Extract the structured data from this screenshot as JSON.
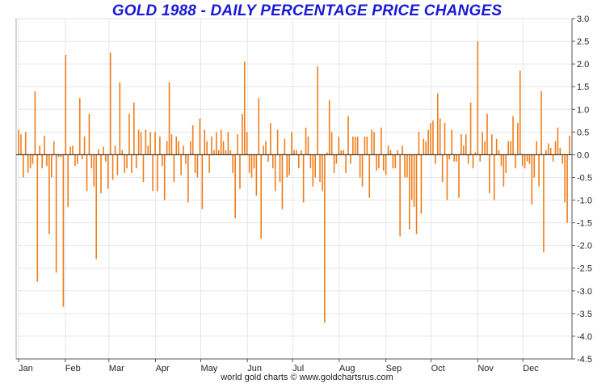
{
  "chart_data": {
    "type": "bar",
    "title": "GOLD 1988 - DAILY PERCENTAGE PRICE CHANGES",
    "xlabel": "",
    "ylabel": "",
    "ylim": [
      -4.5,
      3.0
    ],
    "yticks": [
      3.0,
      2.5,
      2.0,
      1.5,
      1.0,
      0.5,
      0.0,
      -0.5,
      -1.0,
      -1.5,
      -2.0,
      -2.5,
      -3.0,
      -3.5,
      -4.0,
      -4.5
    ],
    "ytick_labels": [
      "3.0",
      "2.5",
      "2.0",
      "1.5",
      "1.0",
      "0.5",
      "0.0",
      "-0.5",
      "-1.0",
      "-1.5",
      "-2.0",
      "-2.5",
      "-3.0",
      "-3.5",
      "-4.0",
      "-4.5"
    ],
    "y_axis_side": "right",
    "grid": true,
    "bar_color": "#f07d1a",
    "months": [
      "Jan",
      "Feb",
      "Mar",
      "Apr",
      "May",
      "Jun",
      "Jul",
      "Aug",
      "Sep",
      "Oct",
      "Nov",
      "Dec"
    ],
    "values": [
      0.55,
      0.45,
      -0.5,
      0.5,
      -0.4,
      -0.3,
      -0.2,
      1.4,
      -2.8,
      0.2,
      -0.3,
      0.42,
      -0.25,
      -1.75,
      -0.5,
      0.3,
      -2.6,
      -0.05,
      -0.05,
      -3.35,
      2.2,
      -1.15,
      0.18,
      0.2,
      -0.25,
      -0.2,
      1.25,
      -0.1,
      0.4,
      -0.8,
      0.9,
      -0.3,
      -0.7,
      -2.3,
      0.12,
      -0.85,
      0.18,
      -0.15,
      -0.75,
      2.25,
      -0.55,
      0.2,
      -0.45,
      1.6,
      0.1,
      -0.4,
      -0.3,
      0.9,
      -0.4,
      1.15,
      -0.3,
      0.55,
      0.5,
      -0.6,
      0.55,
      0.2,
      0.5,
      -0.8,
      0.5,
      -0.8,
      0.4,
      -0.25,
      -1.0,
      0.3,
      1.6,
      0.45,
      -0.6,
      0.4,
      0.3,
      -0.45,
      0.2,
      -0.2,
      -1.05,
      0.3,
      0.65,
      -0.4,
      -0.5,
      0.8,
      -1.2,
      0.55,
      0.3,
      -0.4,
      0.4,
      0.1,
      0.5,
      0.1,
      0.55,
      0.3,
      0.1,
      0.5,
      0.1,
      -0.4,
      -1.4,
      0.45,
      -0.75,
      0.9,
      2.05,
      0.5,
      -0.4,
      -0.5,
      -0.3,
      -0.9,
      1.25,
      -1.85,
      0.2,
      0.3,
      -0.15,
      0.7,
      -0.3,
      -0.8,
      0.55,
      -0.6,
      -1.2,
      0.35,
      -0.5,
      -0.45,
      0.5,
      0.1,
      0.1,
      -0.3,
      0.1,
      -1.05,
      0.6,
      0.4,
      -0.3,
      -0.7,
      -0.5,
      1.95,
      -0.6,
      -0.8,
      -3.7,
      0.05,
      1.2,
      0.5,
      -0.4,
      -0.2,
      0.4,
      0.1,
      0.1,
      -0.4,
      0.85,
      -0.2,
      0.4,
      0.4,
      0.4,
      -0.5,
      -0.7,
      0.4,
      0.4,
      -0.95,
      0.55,
      0.5,
      -0.35,
      -0.3,
      0.6,
      -0.35,
      -0.45,
      0.2,
      0.1,
      -0.3,
      -0.3,
      0.1,
      -1.8,
      0.2,
      -0.5,
      -0.5,
      -1.65,
      -1.0,
      -1.15,
      -1.75,
      0.5,
      -1.3,
      0.35,
      0.3,
      0.55,
      0.7,
      0.75,
      -0.2,
      1.35,
      0.8,
      -0.6,
      0.7,
      -1.0,
      -0.1,
      0.55,
      -0.15,
      -0.15,
      -0.95,
      0.45,
      0.2,
      0.45,
      -0.2,
      1.15,
      -0.3,
      0.05,
      2.5,
      -0.15,
      0.5,
      0.3,
      0.9,
      -0.85,
      0.45,
      -1.0,
      0.35,
      0.1,
      -0.25,
      -0.7,
      -0.4,
      0.3,
      0.3,
      0.85,
      -0.3,
      0.7,
      1.85,
      -0.25,
      -0.3,
      -0.15,
      -0.2,
      -1.1,
      -0.5,
      0.3,
      -0.7,
      1.4,
      -2.15,
      0.1,
      0.25,
      0.15,
      -0.15,
      0.3,
      0.6,
      0.15,
      -0.2,
      -1.05,
      -1.5,
      0.42
    ]
  },
  "footer": {
    "text": "world gold charts © www.goldchartsrus.com"
  }
}
